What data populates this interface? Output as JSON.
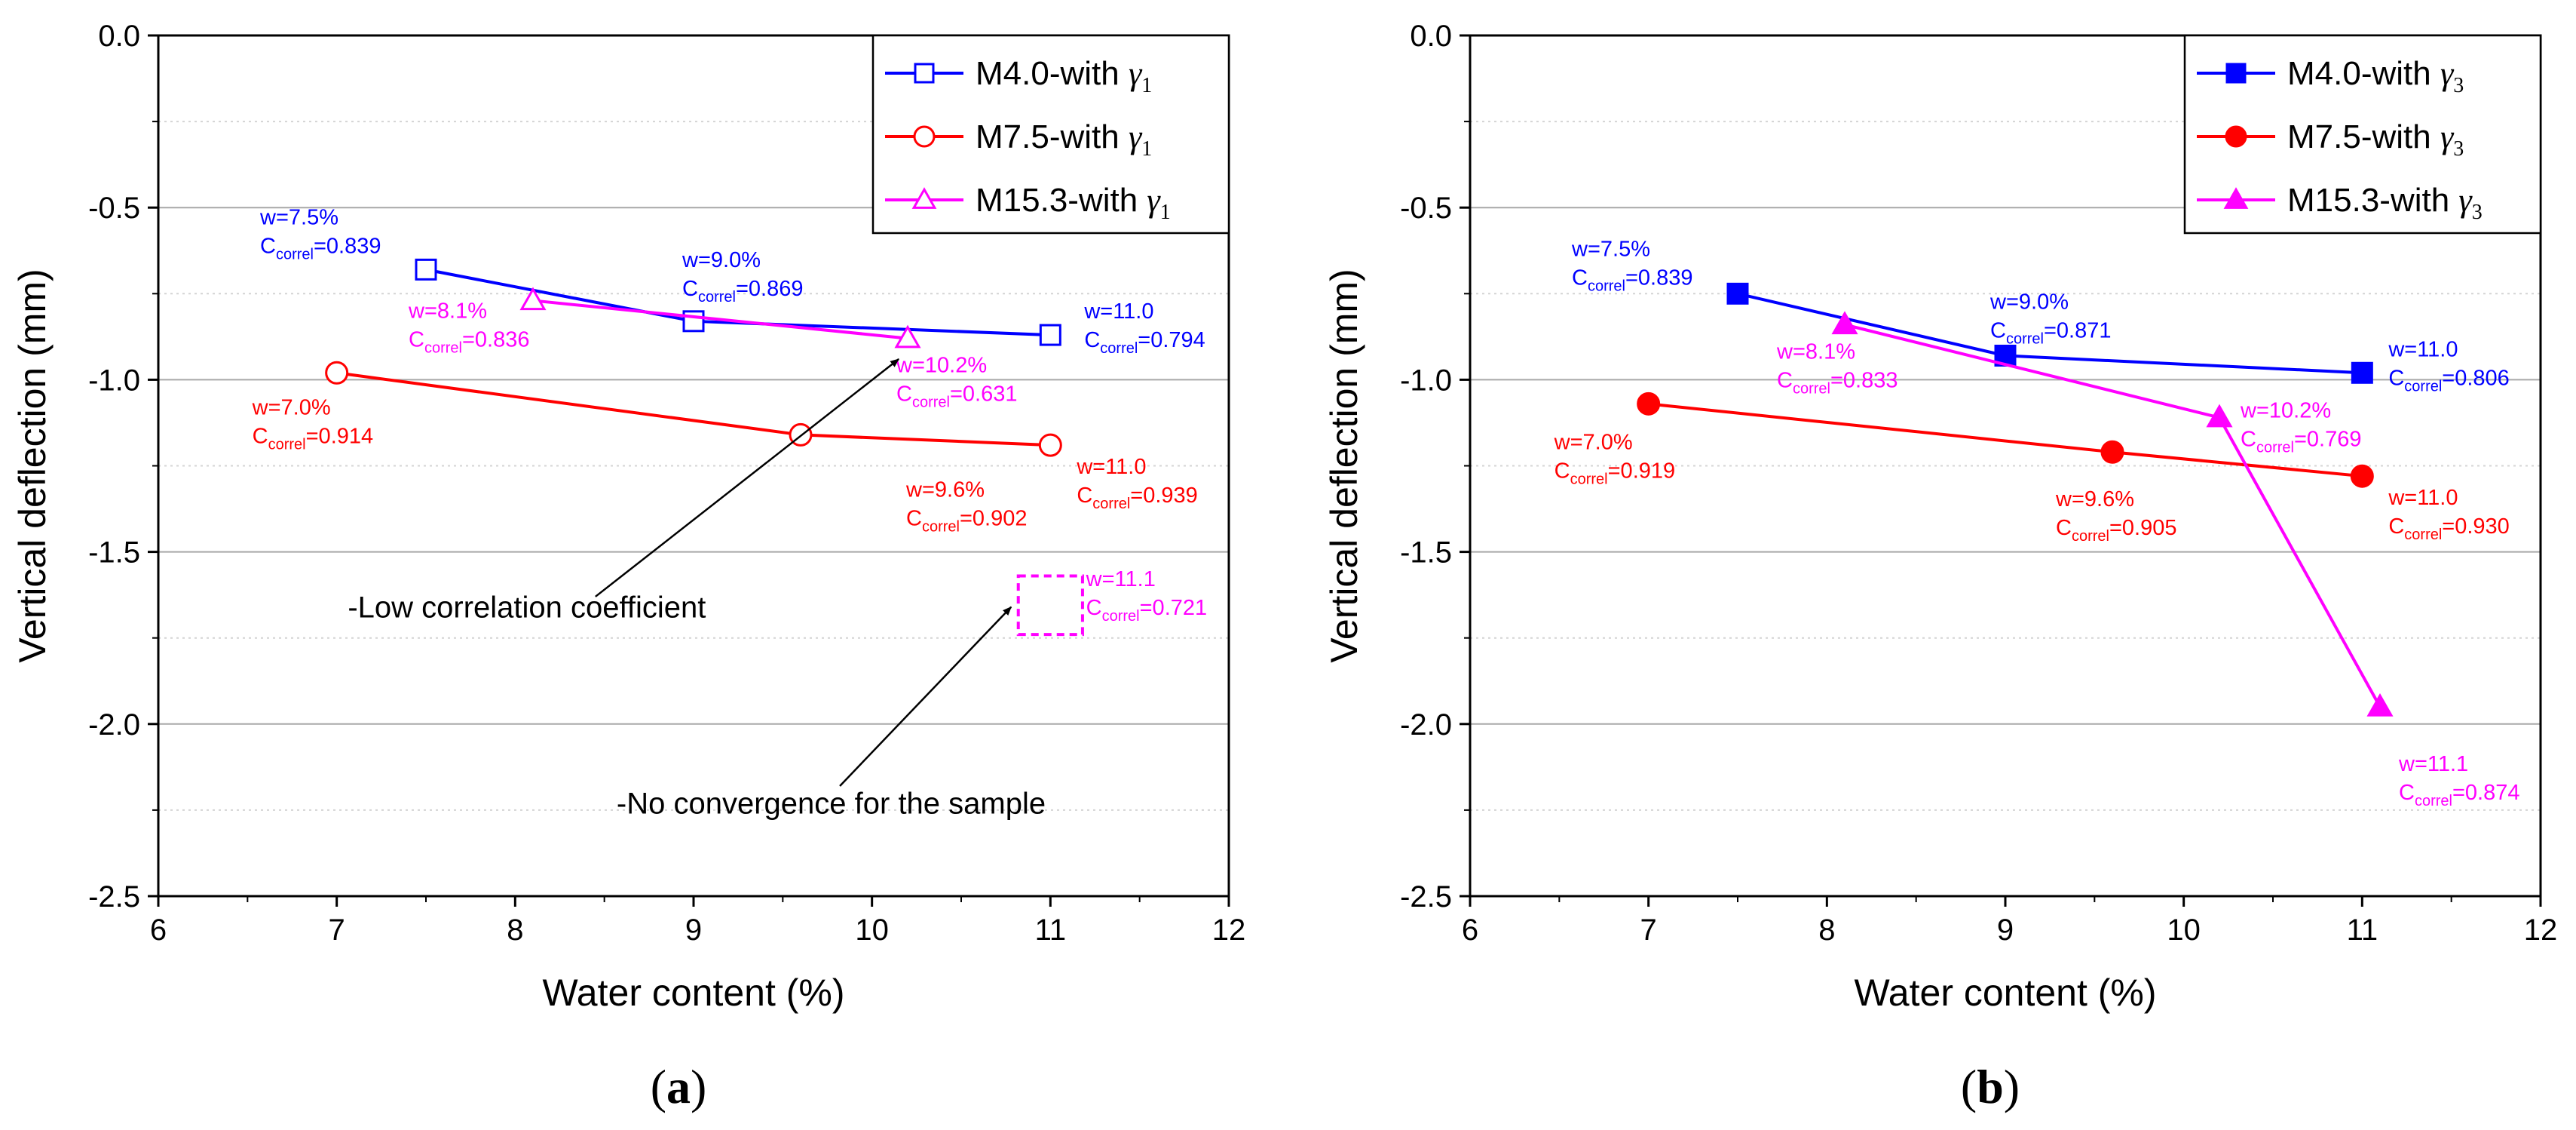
{
  "colors": {
    "m40": "#0000ff",
    "m75": "#ff0000",
    "m153": "#ff00ff",
    "axis": "#000000",
    "grid": "#c8c8c8"
  },
  "chart_data": [
    {
      "type": "line",
      "panel_label": "(a)",
      "xlabel": "Water content (%)",
      "ylabel": "Vertical deflection (mm)",
      "xlim": [
        6,
        12
      ],
      "ylim": [
        -2.5,
        0.0
      ],
      "xticks": [
        "6",
        "7",
        "8",
        "9",
        "10",
        "11",
        "12"
      ],
      "yticks": [
        "0.0",
        "-0.5",
        "-1.0",
        "-1.5",
        "-2.0",
        "-2.5"
      ],
      "grid": "horizontal",
      "legend": "top-right",
      "series": [
        {
          "name": "M4.0-with",
          "greek": "γ",
          "sub": "1",
          "color_key": "m40",
          "marker": "square",
          "filled": false,
          "points": [
            {
              "x": 7.5,
              "y": -0.68,
              "w": "w=7.5%",
              "c": "0.839"
            },
            {
              "x": 9.0,
              "y": -0.83,
              "w": "w=9.0%",
              "c": "0.869"
            },
            {
              "x": 11.0,
              "y": -0.87,
              "w": "w=11.0",
              "c": "0.794"
            }
          ]
        },
        {
          "name": "M7.5-with",
          "greek": "γ",
          "sub": "1",
          "color_key": "m75",
          "marker": "circle",
          "filled": false,
          "points": [
            {
              "x": 7.0,
              "y": -0.98,
              "w": "w=7.0%",
              "c": "0.914"
            },
            {
              "x": 9.6,
              "y": -1.16,
              "w": "w=9.6%",
              "c": "0.902"
            },
            {
              "x": 11.0,
              "y": -1.19,
              "w": "w=11.0",
              "c": "0.939"
            }
          ]
        },
        {
          "name": "M15.3-with",
          "greek": "γ",
          "sub": "1",
          "color_key": "m153",
          "marker": "triangle",
          "filled": false,
          "points": [
            {
              "x": 8.1,
              "y": -0.77,
              "w": "w=8.1%",
              "c": "0.836"
            },
            {
              "x": 10.2,
              "y": -0.88,
              "w": "w=10.2%",
              "c": "0.631"
            }
          ]
        }
      ],
      "extra_labels": [
        {
          "w": "w=11.1",
          "c": "0.721",
          "color_key": "m153"
        }
      ],
      "notes": [
        "-Low correlation coefficient",
        "-No convergence for the sample"
      ],
      "c_prefix": "C",
      "c_sub": "correl"
    },
    {
      "type": "line",
      "panel_label": "(b)",
      "xlabel": "Water content (%)",
      "ylabel": "Vertical deflection (mm)",
      "xlim": [
        6,
        12
      ],
      "ylim": [
        -2.5,
        0.0
      ],
      "xticks": [
        "6",
        "7",
        "8",
        "9",
        "10",
        "11",
        "12"
      ],
      "yticks": [
        "0.0",
        "-0.5",
        "-1.0",
        "-1.5",
        "-2.0",
        "-2.5"
      ],
      "grid": "horizontal",
      "legend": "top-right",
      "series": [
        {
          "name": "M4.0-with",
          "greek": "γ",
          "sub": "3",
          "color_key": "m40",
          "marker": "square",
          "filled": true,
          "points": [
            {
              "x": 7.5,
              "y": -0.75,
              "w": "w=7.5%",
              "c": "0.839"
            },
            {
              "x": 9.0,
              "y": -0.93,
              "w": "w=9.0%",
              "c": "0.871"
            },
            {
              "x": 11.0,
              "y": -0.98,
              "w": "w=11.0",
              "c": "0.806"
            }
          ]
        },
        {
          "name": "M7.5-with",
          "greek": "γ",
          "sub": "3",
          "color_key": "m75",
          "marker": "circle",
          "filled": true,
          "points": [
            {
              "x": 7.0,
              "y": -1.07,
              "w": "w=7.0%",
              "c": "0.919"
            },
            {
              "x": 9.6,
              "y": -1.21,
              "w": "w=9.6%",
              "c": "0.905"
            },
            {
              "x": 11.0,
              "y": -1.28,
              "w": "w=11.0",
              "c": "0.930"
            }
          ]
        },
        {
          "name": "M15.3-with",
          "greek": "γ",
          "sub": "3",
          "color_key": "m153",
          "marker": "triangle",
          "filled": true,
          "points": [
            {
              "x": 8.1,
              "y": -0.84,
              "w": "w=8.1%",
              "c": "0.833"
            },
            {
              "x": 10.2,
              "y": -1.11,
              "w": "w=10.2%",
              "c": "0.769"
            },
            {
              "x": 11.1,
              "y": -1.95,
              "w": "w=11.1",
              "c": "0.874"
            }
          ]
        }
      ],
      "extra_labels": [],
      "notes": [],
      "c_prefix": "C",
      "c_sub": "correl"
    }
  ]
}
